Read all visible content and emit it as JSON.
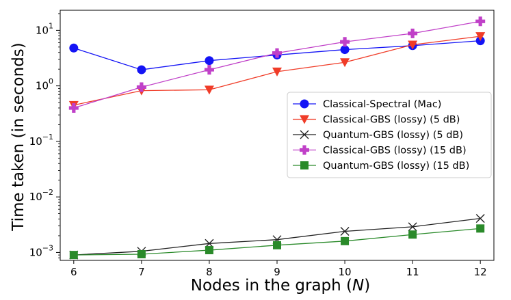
{
  "chart_data": {
    "type": "line",
    "xlabel": "Nodes in the graph (",
    "xlabel_var": "N",
    "xlabel_end": ")",
    "ylabel": "Time taken (in seconds)",
    "x": [
      6,
      7,
      8,
      9,
      10,
      11,
      12
    ],
    "x_ticks": [
      "6",
      "7",
      "8",
      "9",
      "10",
      "11",
      "12"
    ],
    "xlim": [
      5.8,
      12.2
    ],
    "y_scale": "log",
    "ylim": [
      0.00072,
      23
    ],
    "y_ticks": [
      {
        "value": 0.001,
        "base": "10",
        "exp": "−3"
      },
      {
        "value": 0.01,
        "base": "10",
        "exp": "−2"
      },
      {
        "value": 0.1,
        "base": "10",
        "exp": "−1"
      },
      {
        "value": 1,
        "base": "10",
        "exp": "0"
      },
      {
        "value": 10,
        "base": "10",
        "exp": "1"
      }
    ],
    "grid": false,
    "legend_position": "center-right",
    "series": [
      {
        "name": "Classical-Spectral (Mac)",
        "color": "#1414f5",
        "marker": "circle",
        "values": [
          4.8,
          1.95,
          2.85,
          3.6,
          4.5,
          5.3,
          6.5
        ]
      },
      {
        "name": "Classical-GBS (lossy) (5 dB)",
        "color": "#f03c28",
        "marker": "triangle-down",
        "values": [
          0.45,
          0.82,
          0.85,
          1.8,
          2.65,
          5.5,
          7.8
        ]
      },
      {
        "name": "Quantum-GBS (lossy) (5 dB)",
        "color": "#222222",
        "marker": "x",
        "values": [
          0.0009,
          0.00105,
          0.00145,
          0.0017,
          0.0024,
          0.0029,
          0.0041
        ]
      },
      {
        "name": "Classical-GBS (lossy) (15 dB)",
        "color": "#c040c8",
        "marker": "plus",
        "values": [
          0.4,
          0.95,
          1.95,
          3.9,
          6.2,
          8.8,
          14.5
        ]
      },
      {
        "name": "Quantum-GBS (lossy) (15 dB)",
        "color": "#2a8a2a",
        "marker": "square",
        "values": [
          0.0009,
          0.00093,
          0.0011,
          0.00135,
          0.0016,
          0.0021,
          0.0027
        ]
      }
    ]
  }
}
